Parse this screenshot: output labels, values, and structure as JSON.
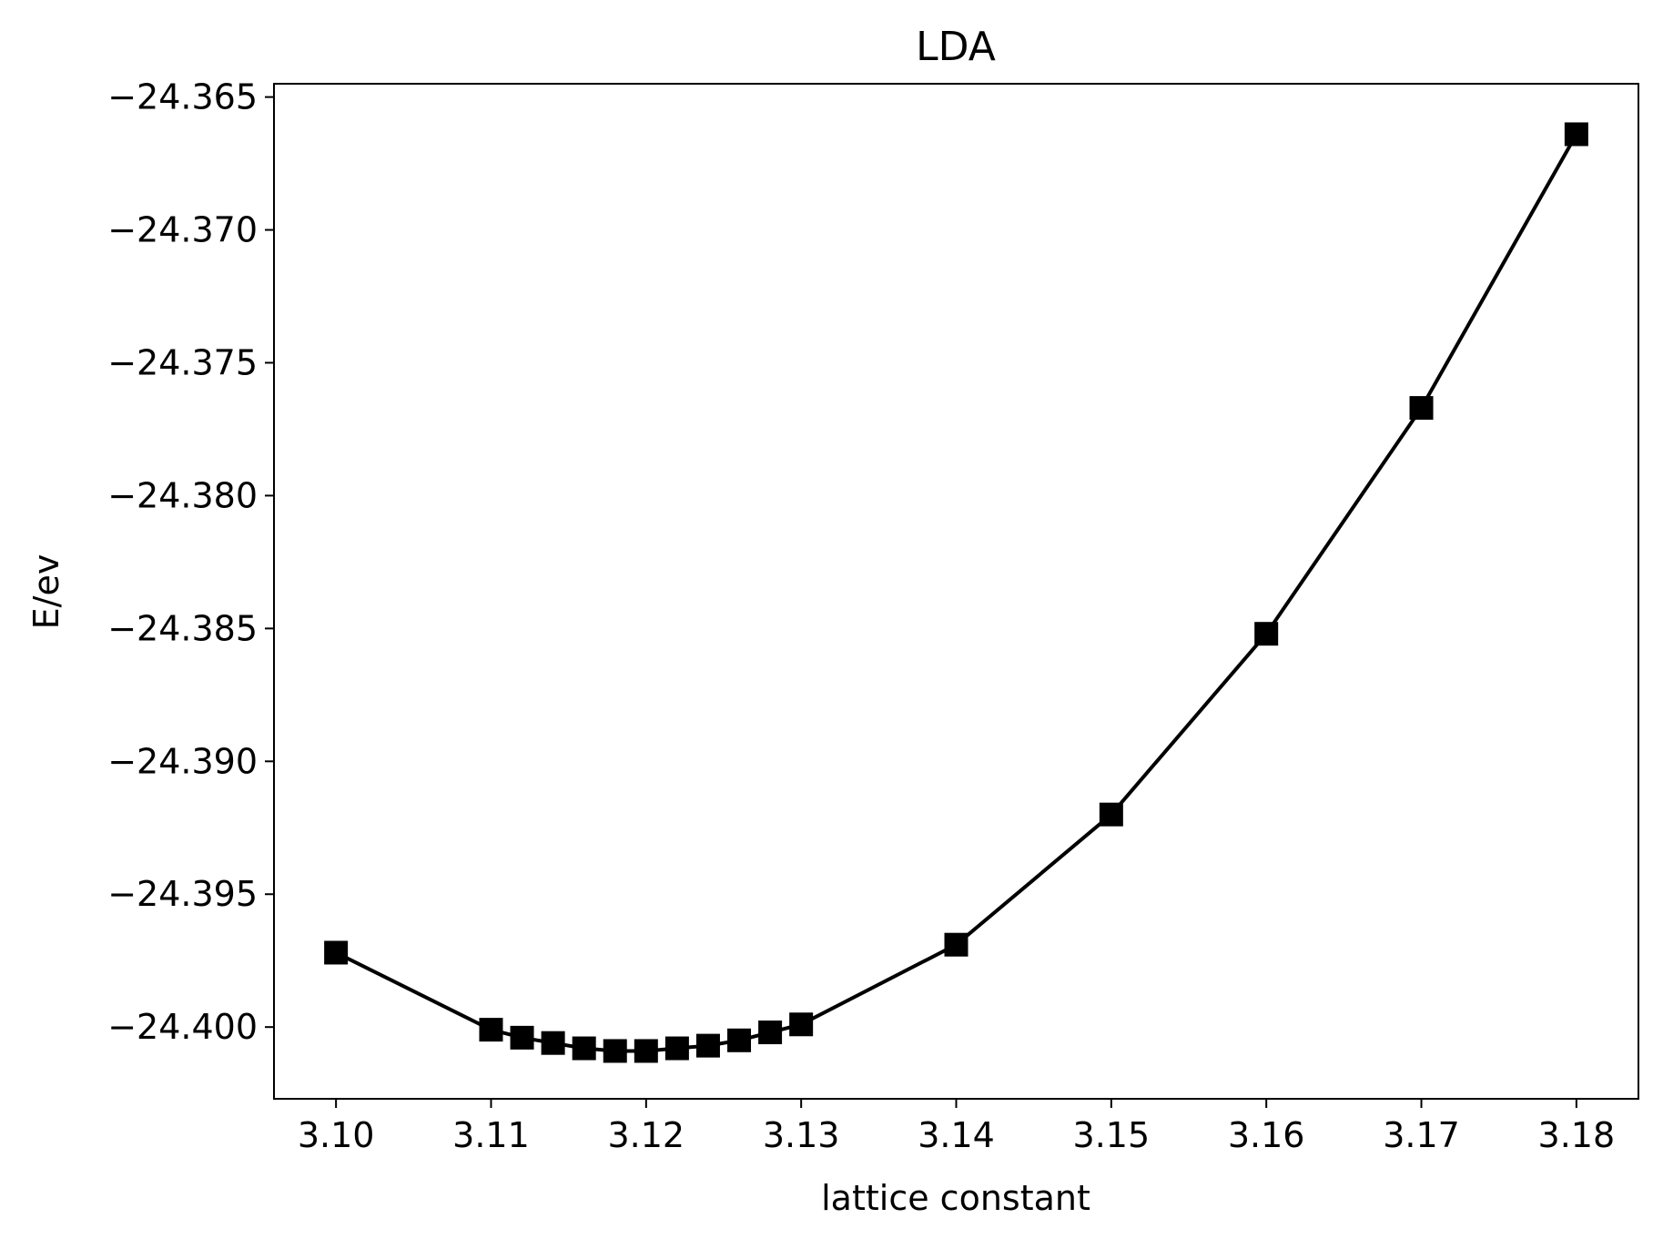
{
  "chart_data": {
    "type": "line",
    "title": "LDA",
    "xlabel": "lattice constant",
    "ylabel": "E/ev",
    "xlim": [
      3.096,
      3.184
    ],
    "ylim": [
      -24.4027,
      -24.3645
    ],
    "xticks": [
      3.1,
      3.11,
      3.12,
      3.13,
      3.14,
      3.15,
      3.16,
      3.17,
      3.18
    ],
    "xtick_labels": [
      "3.10",
      "3.11",
      "3.12",
      "3.13",
      "3.14",
      "3.15",
      "3.16",
      "3.17",
      "3.18"
    ],
    "yticks": [
      -24.365,
      -24.37,
      -24.375,
      -24.38,
      -24.385,
      -24.39,
      -24.395,
      -24.4
    ],
    "ytick_labels": [
      "−24.365",
      "−24.370",
      "−24.375",
      "−24.380",
      "−24.385",
      "−24.390",
      "−24.395",
      "−24.400"
    ],
    "grid": false,
    "series": [
      {
        "color": "#000000",
        "marker": "square",
        "x": [
          3.1,
          3.11,
          3.112,
          3.114,
          3.116,
          3.118,
          3.12,
          3.122,
          3.124,
          3.126,
          3.128,
          3.13,
          3.14,
          3.15,
          3.16,
          3.17,
          3.18
        ],
        "y": [
          -24.3972,
          -24.4001,
          -24.4004,
          -24.4006,
          -24.4008,
          -24.4009,
          -24.4009,
          -24.4008,
          -24.4007,
          -24.4005,
          -24.4002,
          -24.3999,
          -24.3969,
          -24.392,
          -24.3852,
          -24.3767,
          -24.3664
        ]
      }
    ]
  }
}
